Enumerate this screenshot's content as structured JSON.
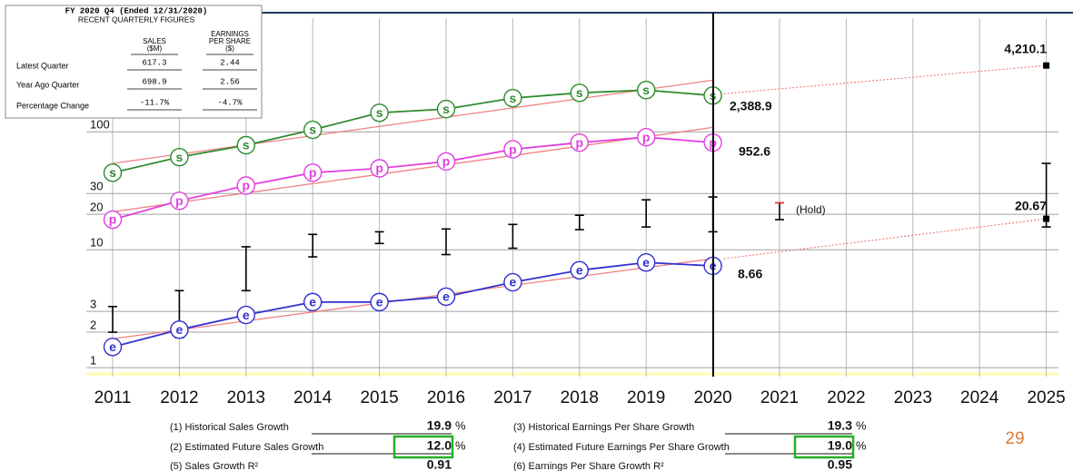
{
  "chart_data": {
    "type": "line",
    "log_y": true,
    "grid": true,
    "categories": [
      "2011",
      "2012",
      "2013",
      "2014",
      "2015",
      "2016",
      "2017",
      "2018",
      "2019",
      "2020",
      "2021",
      "2022",
      "2023",
      "2024",
      "2025"
    ],
    "ylim": [
      0.84,
      920
    ],
    "yticks": [
      1,
      2,
      3,
      10,
      20,
      30,
      100
    ],
    "series": [
      {
        "marker": "s",
        "color": "#2e8b2e",
        "values": [
          45,
          61,
          77,
          104,
          145,
          156,
          193,
          214,
          226,
          203,
          null,
          null,
          null,
          null,
          null
        ],
        "trend": [
          54,
          274
        ],
        "projection": [
          210,
          365
        ]
      },
      {
        "marker": "p",
        "color": "#e040e0",
        "values": [
          18,
          26,
          35,
          45,
          49,
          56,
          71,
          81,
          90,
          81,
          null,
          null,
          null,
          null,
          null
        ],
        "trend": [
          21,
          109
        ]
      },
      {
        "marker": "e",
        "color": "#3030d0",
        "values": [
          1.5,
          2.1,
          2.8,
          3.6,
          3.6,
          4.0,
          5.3,
          6.7,
          7.8,
          7.3,
          null,
          null,
          null,
          null,
          null
        ],
        "trend": [
          1.76,
          8.4
        ],
        "projection": [
          8.4,
          18.3
        ]
      }
    ],
    "trend_color": "#f08080",
    "price": {
      "color": "#000000",
      "hold_color": "#e02020",
      "high": [
        3.3,
        4.5,
        10.6,
        13.5,
        14.2,
        15.0,
        16.4,
        19.6,
        26.5,
        28,
        25,
        null,
        null,
        null,
        54
      ],
      "low": [
        2.0,
        1.8,
        4.5,
        8.7,
        11.3,
        9.1,
        10.3,
        14.8,
        15.6,
        14.2,
        18,
        null,
        null,
        null,
        15.6
      ]
    },
    "annotations": [
      "2,388.9",
      "952.6",
      "8.66",
      "4,210.1",
      "20.67",
      "(Hold)"
    ]
  },
  "inset": {
    "title": "FY 2020 Q4 (Ended 12/31/2020)",
    "subtitle": "RECENT QUARTERLY FIGURES",
    "columns": [
      [
        "SALES",
        "($M)"
      ],
      [
        "EARNINGS",
        "PER SHARE",
        "($)"
      ]
    ],
    "rows": [
      [
        "Latest Quarter",
        "617.3",
        "2.44"
      ],
      [
        "Year Ago Quarter",
        "698.9",
        "2.56"
      ],
      [
        "Percentage Change",
        "-11.7%",
        "-4.7%"
      ]
    ]
  },
  "stats": [
    {
      "label": "(1) Historical Sales Growth",
      "value": "19.9",
      "unit": "%"
    },
    {
      "label": "(2) Estimated Future Sales Growth",
      "value": "12.0",
      "unit": "%"
    },
    {
      "label": "(5) Sales Growth R²",
      "value": "0.91"
    },
    {
      "label": "(3) Historical Earnings Per Share Growth",
      "value": "19.3",
      "unit": "%"
    },
    {
      "label": "(4) Estimated Future Earnings Per Share Growth",
      "value": "19.0",
      "unit": "%"
    },
    {
      "label": "(6) Earnings Per Share Growth R²",
      "value": "0.95"
    }
  ],
  "page_number": 29
}
